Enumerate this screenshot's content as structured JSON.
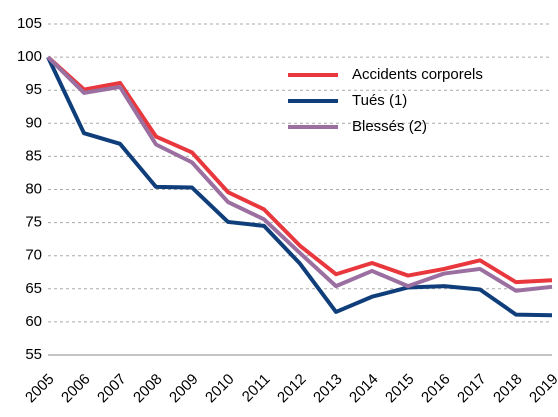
{
  "chart_data": {
    "type": "line",
    "categories": [
      "2005",
      "2006",
      "2007",
      "2008",
      "2009",
      "2010",
      "2011",
      "2012",
      "2013",
      "2014",
      "2015",
      "2016",
      "2017",
      "2018",
      "2019"
    ],
    "series": [
      {
        "name": "Accidents corporels",
        "color": "#e8383d",
        "values": [
          100,
          95.1,
          96.1,
          88,
          85.6,
          79.6,
          77,
          71.5,
          67.2,
          68.9,
          67,
          68,
          69.3,
          66,
          66.3
        ]
      },
      {
        "name": "Tués (1)",
        "color": "#0f3e7a",
        "values": [
          100,
          88.5,
          86.9,
          80.4,
          80.3,
          75.1,
          74.5,
          68.8,
          61.5,
          63.8,
          65.2,
          65.4,
          64.9,
          61.1,
          61
        ]
      },
      {
        "name": "Blessés (2)",
        "color": "#9b6fa0",
        "values": [
          100,
          94.6,
          95.5,
          86.8,
          84.1,
          78.1,
          75.5,
          70.4,
          65.4,
          67.7,
          65.4,
          67.3,
          68,
          64.7,
          65.3
        ]
      }
    ],
    "ylim": [
      55,
      105
    ],
    "yticks": [
      55,
      60,
      65,
      70,
      75,
      80,
      85,
      90,
      95,
      100,
      105
    ],
    "grid": true,
    "legend": "top-right"
  }
}
